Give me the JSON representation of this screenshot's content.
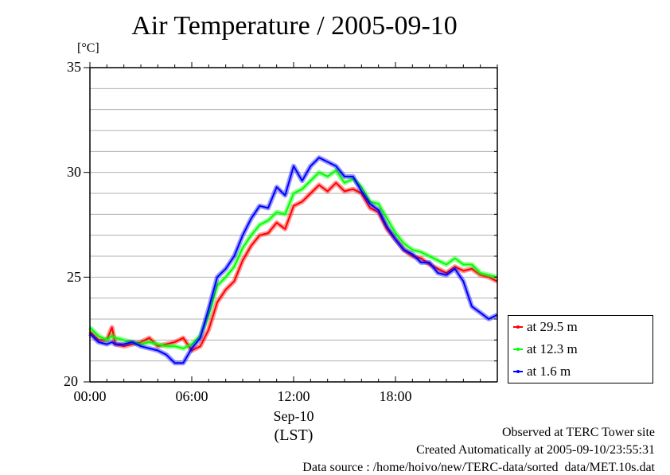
{
  "chart_data": {
    "type": "line",
    "title": "Air Temperature / 2005-09-10",
    "ylabel": "[°C]",
    "xlabel": "(LST)",
    "date_label": "Sep-10",
    "ylim": [
      20,
      35
    ],
    "xlim_hours": [
      0,
      24
    ],
    "y_ticks": [
      "20",
      "25",
      "30",
      "35"
    ],
    "y_tick_values": [
      20,
      25,
      30,
      35
    ],
    "y_minor_step": 1,
    "x_ticks": [
      "00:00",
      "06:00",
      "12:00",
      "18:00"
    ],
    "x_tick_values": [
      0,
      6,
      12,
      18
    ],
    "x_minor_step_hours": 1,
    "grid": true,
    "legend_position": "right-bottom",
    "x": [
      0,
      0.5,
      1,
      1.3,
      1.5,
      2,
      2.5,
      3,
      3.5,
      4,
      4.5,
      5,
      5.5,
      6,
      6.5,
      7,
      7.5,
      8,
      8.5,
      9,
      9.5,
      10,
      10.5,
      11,
      11.5,
      12,
      12.5,
      13,
      13.5,
      14,
      14.5,
      15,
      15.5,
      16,
      16.5,
      17,
      17.5,
      18,
      18.5,
      19,
      19.5,
      20,
      20.5,
      21,
      21.5,
      22,
      22.5,
      23,
      23.5,
      24
    ],
    "series": [
      {
        "name": "at 29.5 m",
        "color": "#ff0000",
        "values": [
          22.4,
          22.0,
          22.0,
          22.6,
          21.8,
          21.7,
          21.8,
          21.9,
          22.1,
          21.7,
          21.8,
          21.9,
          22.1,
          21.5,
          21.7,
          22.5,
          23.8,
          24.4,
          24.8,
          25.8,
          26.5,
          27.0,
          27.1,
          27.6,
          27.3,
          28.4,
          28.6,
          29.0,
          29.4,
          29.1,
          29.5,
          29.1,
          29.2,
          29.0,
          28.3,
          28.1,
          27.3,
          26.8,
          26.3,
          26.0,
          25.9,
          25.6,
          25.4,
          25.2,
          25.5,
          25.3,
          25.4,
          25.1,
          25.0,
          24.8
        ]
      },
      {
        "name": "at 12.3 m",
        "color": "#00ff00",
        "values": [
          22.6,
          22.2,
          22.0,
          22.2,
          22.1,
          22.0,
          21.9,
          21.8,
          21.9,
          21.8,
          21.7,
          21.7,
          21.6,
          21.8,
          22.2,
          23.2,
          24.6,
          25.0,
          25.5,
          26.4,
          27.0,
          27.5,
          27.7,
          28.1,
          28.0,
          29.0,
          29.2,
          29.6,
          30.0,
          29.8,
          30.1,
          29.5,
          29.7,
          29.3,
          28.6,
          28.5,
          27.8,
          27.1,
          26.6,
          26.3,
          26.2,
          26.0,
          25.8,
          25.6,
          25.9,
          25.6,
          25.6,
          25.2,
          25.1,
          25.0
        ]
      },
      {
        "name": "at 1.6 m",
        "color": "#0000ff",
        "values": [
          22.3,
          21.9,
          21.8,
          21.9,
          21.8,
          21.8,
          21.9,
          21.7,
          21.6,
          21.5,
          21.3,
          20.9,
          20.9,
          21.6,
          22.1,
          23.5,
          25.0,
          25.4,
          26.0,
          27.0,
          27.8,
          28.4,
          28.3,
          29.3,
          28.9,
          30.3,
          29.6,
          30.3,
          30.7,
          30.5,
          30.3,
          29.8,
          29.8,
          29.1,
          28.5,
          28.2,
          27.4,
          26.8,
          26.3,
          26.1,
          25.7,
          25.7,
          25.2,
          25.1,
          25.4,
          24.8,
          23.6,
          23.3,
          23.0,
          23.2
        ]
      }
    ]
  },
  "legend": {
    "items": [
      "at 29.5 m",
      "at 12.3 m",
      "at 1.6 m"
    ]
  },
  "footer": {
    "line1": "Observed at TERC Tower site",
    "line2": "Created Automatically at 2005-09-10/23:55:31",
    "line3": "Data source : /home/hoivo/new/TERC-data/sorted  data/MET.10s.dat"
  }
}
